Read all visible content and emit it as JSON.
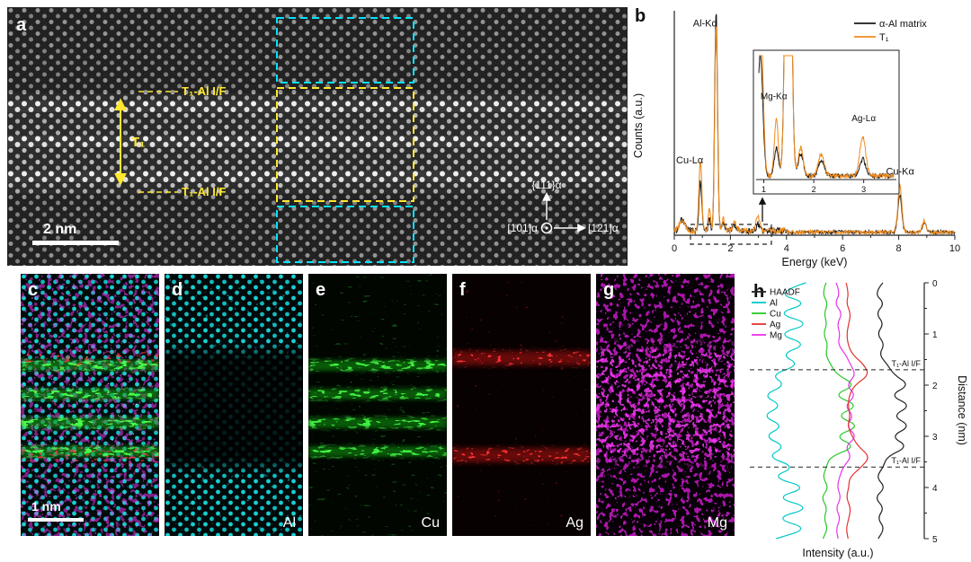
{
  "figure": {
    "panels": {
      "a": {
        "label": "a",
        "scale_bar": "2 nm",
        "t1_label": "T₁",
        "interface_top_label": "T₁-Al I/F",
        "interface_bottom_label": "T₁-Al I/F",
        "axis_up": "{111}α",
        "axis_right": "[121]α",
        "axis_origin": "[101]α"
      },
      "b": {
        "label": "b"
      },
      "c": {
        "label": "c",
        "scale_bar": "1 nm"
      },
      "d": {
        "label": "d",
        "element": "Al"
      },
      "e": {
        "label": "e",
        "element": "Cu"
      },
      "f": {
        "label": "f",
        "element": "Ag"
      },
      "g": {
        "label": "g",
        "element": "Mg"
      },
      "h": {
        "label": "h"
      }
    },
    "colors": {
      "al_cyan": "#00dcdc",
      "cu_green": "#2ad52a",
      "ag_red": "#f03030",
      "mg_magenta": "#e832e8",
      "t1_orange": "#f08c1e",
      "annotation_yellow": "#ffe82e",
      "annotation_cyan": "#00e4ff"
    }
  },
  "chart_data": [
    {
      "id": "eds-spectrum",
      "panel": "b",
      "type": "line",
      "xlabel": "Energy (keV)",
      "ylabel": "Counts (a.u.)",
      "xlim": [
        0,
        10
      ],
      "xticks": [
        0,
        2,
        4,
        6,
        8,
        10
      ],
      "legend": [
        {
          "name": "α-Al matrix",
          "color": "#1a1a1a"
        },
        {
          "name": "T₁",
          "color": "#f08c1e"
        }
      ],
      "series": [
        {
          "name": "α-Al matrix",
          "color": "#1a1a1a",
          "seed": 3,
          "peaks": [
            {
              "c": 0.28,
              "h": 0.05,
              "w": 0.09
            },
            {
              "c": 0.93,
              "h": 0.22,
              "w": 0.05
            },
            {
              "c": 1.25,
              "h": 0.05,
              "w": 0.04
            },
            {
              "c": 1.49,
              "h": 1.0,
              "w": 0.05
            },
            {
              "c": 1.74,
              "h": 0.04,
              "w": 0.05
            },
            {
              "c": 2.15,
              "h": 0.025,
              "w": 0.06
            },
            {
              "c": 2.98,
              "h": 0.03,
              "w": 0.06
            },
            {
              "c": 8.04,
              "h": 0.17,
              "w": 0.07
            },
            {
              "c": 8.91,
              "h": 0.04,
              "w": 0.07
            }
          ]
        },
        {
          "name": "T₁",
          "color": "#f08c1e",
          "seed": 7,
          "peaks": [
            {
              "c": 0.28,
              "h": 0.05,
              "w": 0.09
            },
            {
              "c": 0.93,
              "h": 0.32,
              "w": 0.05
            },
            {
              "c": 1.25,
              "h": 0.1,
              "w": 0.04
            },
            {
              "c": 1.49,
              "h": 0.93,
              "w": 0.05
            },
            {
              "c": 1.74,
              "h": 0.05,
              "w": 0.05
            },
            {
              "c": 2.15,
              "h": 0.04,
              "w": 0.06
            },
            {
              "c": 2.98,
              "h": 0.07,
              "w": 0.06
            },
            {
              "c": 8.04,
              "h": 0.21,
              "w": 0.07
            },
            {
              "c": 8.91,
              "h": 0.05,
              "w": 0.07
            }
          ]
        }
      ],
      "peak_labels": [
        {
          "text": "Cu-Lα",
          "x": 0.93,
          "lx": 0.55,
          "ly": 0.32
        },
        {
          "text": "Al-Kα",
          "x": 1.49,
          "lx": 1.1,
          "ly": 0.93
        },
        {
          "text": "Cu-Kα",
          "x": 8.04,
          "lx": 8.05,
          "ly": 0.27
        }
      ],
      "inset": {
        "xlim": [
          0.9,
          3.6
        ],
        "xticks": [
          1,
          2,
          3
        ],
        "scale": 4.5,
        "labels": [
          {
            "text": "Mg-Kα",
            "x": 1.2,
            "ly": 0.62
          },
          {
            "text": "Ag-Lα",
            "x": 3.0,
            "ly": 0.45
          }
        ]
      }
    },
    {
      "id": "eds-line-profiles",
      "panel": "h",
      "type": "line",
      "orientation": "vertical",
      "xlabel": "Intensity (a.u.)",
      "ylabel": "Distance (nm)",
      "ylim": [
        0,
        5
      ],
      "yticks": [
        0,
        1,
        2,
        3,
        4,
        5
      ],
      "distance_step": 0.2,
      "legend": [
        {
          "name": "HAADF",
          "color": "#222222"
        },
        {
          "name": "Al",
          "color": "#00c8c8"
        },
        {
          "name": "Cu",
          "color": "#28c828"
        },
        {
          "name": "Ag",
          "color": "#e43232"
        },
        {
          "name": "Mg",
          "color": "#e832e8"
        }
      ],
      "series": [
        {
          "name": "Al",
          "color": "#00c8c8",
          "values": [
            0.34,
            0.14,
            0.36,
            0.15,
            0.37,
            0.16,
            0.35,
            0.18,
            0.3,
            0.12,
            0.22,
            0.08,
            0.2,
            0.07,
            0.21,
            0.08,
            0.22,
            0.1,
            0.28,
            0.13,
            0.35,
            0.15,
            0.37,
            0.14,
            0.36,
            0.16
          ]
        },
        {
          "name": "Cu",
          "color": "#28c828",
          "values": [
            0.46,
            0.43,
            0.47,
            0.44,
            0.46,
            0.44,
            0.47,
            0.45,
            0.48,
            0.52,
            0.64,
            0.5,
            0.66,
            0.51,
            0.67,
            0.5,
            0.64,
            0.48,
            0.46,
            0.44,
            0.47,
            0.43,
            0.46,
            0.44,
            0.47,
            0.44
          ]
        },
        {
          "name": "Mg",
          "color": "#e832e8",
          "values": [
            0.52,
            0.54,
            0.51,
            0.55,
            0.52,
            0.54,
            0.53,
            0.57,
            0.6,
            0.63,
            0.58,
            0.64,
            0.57,
            0.62,
            0.58,
            0.64,
            0.57,
            0.61,
            0.56,
            0.54,
            0.52,
            0.55,
            0.51,
            0.54,
            0.52,
            0.53
          ]
        },
        {
          "name": "Ag",
          "color": "#e43232",
          "values": [
            0.58,
            0.59,
            0.58,
            0.6,
            0.59,
            0.58,
            0.59,
            0.61,
            0.68,
            0.71,
            0.63,
            0.6,
            0.59,
            0.6,
            0.59,
            0.61,
            0.65,
            0.72,
            0.67,
            0.6,
            0.59,
            0.58,
            0.6,
            0.59,
            0.58,
            0.59
          ]
        },
        {
          "name": "HAADF",
          "color": "#222222",
          "values": [
            0.8,
            0.74,
            0.81,
            0.75,
            0.8,
            0.76,
            0.81,
            0.77,
            0.82,
            0.86,
            0.96,
            0.84,
            0.97,
            0.85,
            0.97,
            0.84,
            0.95,
            0.82,
            0.8,
            0.76,
            0.81,
            0.75,
            0.8,
            0.76,
            0.81,
            0.77
          ]
        }
      ],
      "annotations": [
        {
          "text": "T₁-Al I/F",
          "distance": 1.7
        },
        {
          "text": "T₁-Al I/F",
          "distance": 3.6
        }
      ]
    }
  ]
}
